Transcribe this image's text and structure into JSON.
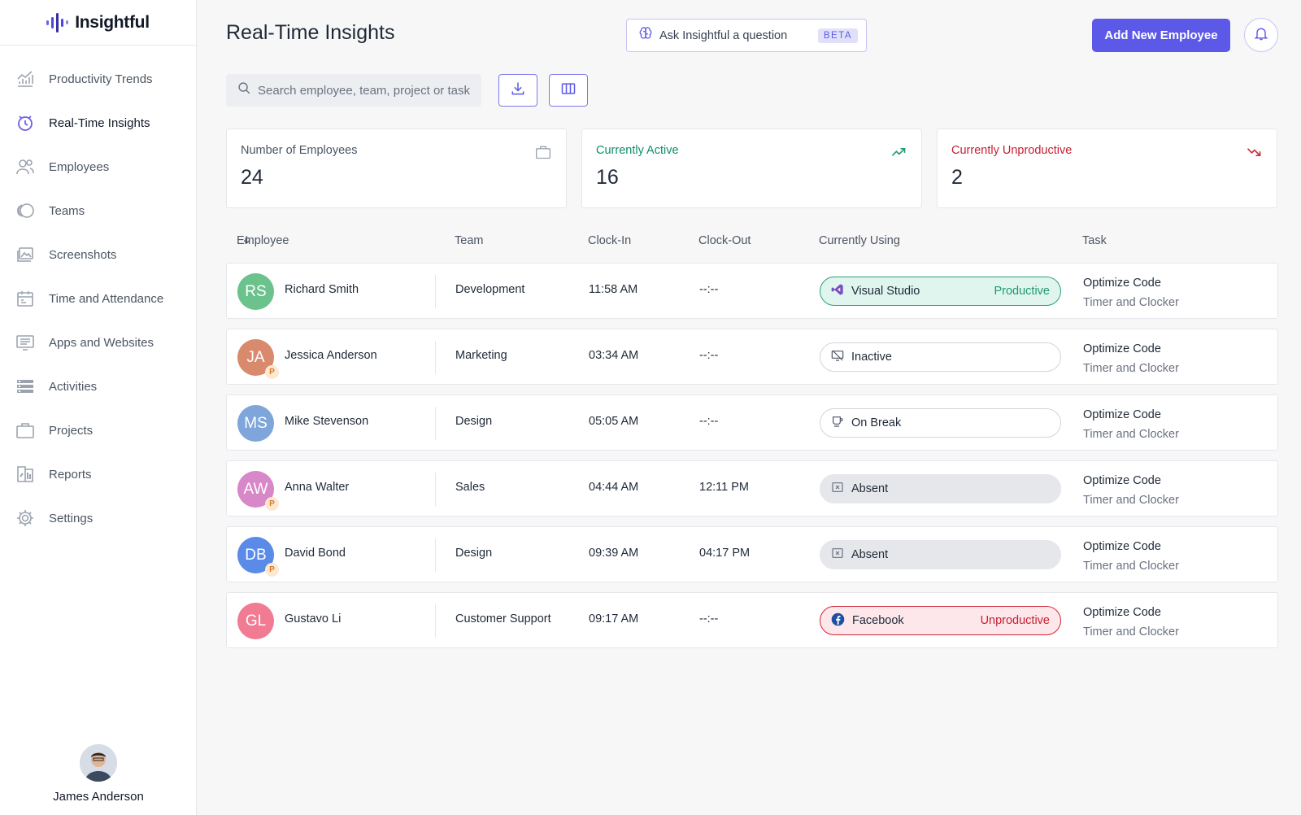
{
  "app": {
    "name": "Insightful"
  },
  "colors": {
    "accent": "#5d59e8",
    "productive": "#1f9a70",
    "unproductive": "#c81e33",
    "active": "#0d8f6b"
  },
  "sidebar": {
    "items": [
      {
        "label": "Productivity Trends",
        "icon": "trend-chart-icon"
      },
      {
        "label": "Real-Time Insights",
        "icon": "clock-pulse-icon",
        "active": true
      },
      {
        "label": "Employees",
        "icon": "users-icon"
      },
      {
        "label": "Teams",
        "icon": "teams-icon"
      },
      {
        "label": "Screenshots",
        "icon": "screenshots-icon"
      },
      {
        "label": "Time and Attendance",
        "icon": "calendar-icon"
      },
      {
        "label": "Apps and Websites",
        "icon": "monitor-icon"
      },
      {
        "label": "Activities",
        "icon": "list-icon"
      },
      {
        "label": "Projects",
        "icon": "briefcase-icon"
      },
      {
        "label": "Reports",
        "icon": "reports-icon"
      },
      {
        "label": "Settings",
        "icon": "gear-icon"
      }
    ],
    "user": {
      "name": "James Anderson"
    }
  },
  "header": {
    "title": "Real-Time Insights",
    "ask_label": "Ask Insightful a question",
    "beta": "BETA",
    "add_button": "Add New Employee"
  },
  "search": {
    "placeholder": "Search employee, team, project or task"
  },
  "stats": [
    {
      "label": "Number of Employees",
      "value": "24",
      "icon": "briefcase-icon"
    },
    {
      "label": "Currently Active",
      "value": "16",
      "icon": "trend-up-icon"
    },
    {
      "label": "Currently Unproductive",
      "value": "2",
      "icon": "trend-down-icon"
    }
  ],
  "table": {
    "columns": [
      "Employee",
      "Team",
      "Clock-In",
      "Clock-Out",
      "Currently Using",
      "Task"
    ],
    "rows": [
      {
        "initials": "RS",
        "color": "#6cc28c",
        "name": "Richard Smith",
        "badge": "",
        "team": "Development",
        "clock_in": "11:58 AM",
        "clock_out": "--:--",
        "using": "Visual Studio",
        "using_icon": "visual-studio-icon",
        "status": "Productive",
        "state": "productive",
        "task": "Optimize Code",
        "subtask": "Timer and Clocker"
      },
      {
        "initials": "JA",
        "color": "#d98a6d",
        "name": "Jessica Anderson",
        "badge": "P",
        "team": "Marketing",
        "clock_in": "03:34 AM",
        "clock_out": "--:--",
        "using": "Inactive",
        "using_icon": "inactive-monitor-icon",
        "status": "",
        "state": "neutral",
        "task": "Optimize Code",
        "subtask": "Timer and Clocker"
      },
      {
        "initials": "MS",
        "color": "#7ea6da",
        "name": "Mike Stevenson",
        "badge": "",
        "team": "Design",
        "clock_in": "05:05 AM",
        "clock_out": "--:--",
        "using": "On Break",
        "using_icon": "coffee-icon",
        "status": "",
        "state": "neutral",
        "task": "Optimize Code",
        "subtask": "Timer and Clocker"
      },
      {
        "initials": "AW",
        "color": "#d887c8",
        "name": "Anna Walter",
        "badge": "P",
        "team": "Sales",
        "clock_in": "04:44 AM",
        "clock_out": "12:11 PM",
        "using": "Absent",
        "using_icon": "absent-icon",
        "status": "",
        "state": "absent",
        "task": "Optimize Code",
        "subtask": "Timer and Clocker"
      },
      {
        "initials": "DB",
        "color": "#5b8be8",
        "name": "David Bond",
        "badge": "P",
        "team": "Design",
        "clock_in": "09:39 AM",
        "clock_out": "04:17 PM",
        "using": "Absent",
        "using_icon": "absent-icon",
        "status": "",
        "state": "absent",
        "task": "Optimize Code",
        "subtask": "Timer and Clocker"
      },
      {
        "initials": "GL",
        "color": "#f07b93",
        "name": "Gustavo Li",
        "badge": "",
        "team": "Customer Support",
        "clock_in": "09:17 AM",
        "clock_out": "--:--",
        "using": "Facebook",
        "using_icon": "facebook-icon",
        "status": "Unproductive",
        "state": "unproductive",
        "task": "Optimize Code",
        "subtask": "Timer and Clocker"
      }
    ]
  }
}
